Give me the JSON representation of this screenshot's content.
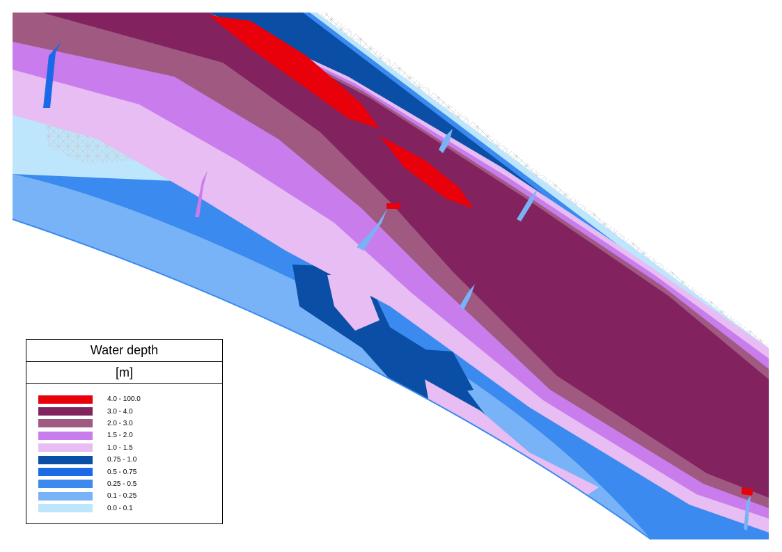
{
  "legend": {
    "title": "Water depth",
    "unit": "[m]",
    "classes": [
      {
        "label": "4.0 - 100.0",
        "color": "#e8000b"
      },
      {
        "label": "3.0 - 4.0",
        "color": "#82235f"
      },
      {
        "label": "2.0 - 3.0",
        "color": "#a05a82"
      },
      {
        "label": "1.5 - 2.0",
        "color": "#c97ded"
      },
      {
        "label": "1.0 - 1.5",
        "color": "#e7bdf3"
      },
      {
        "label": "0.75 - 1.0",
        "color": "#0a4ea6"
      },
      {
        "label": "0.5 - 0.75",
        "color": "#1a6ae8"
      },
      {
        "label": "0.25 - 0.5",
        "color": "#3a8aef"
      },
      {
        "label": "0.1 - 0.25",
        "color": "#79b3f7"
      },
      {
        "label": "0.0 - 0.1",
        "color": "#bde5fc"
      }
    ]
  },
  "colors": {
    "mesh": "#c8c8c8",
    "background": "#ffffff"
  }
}
